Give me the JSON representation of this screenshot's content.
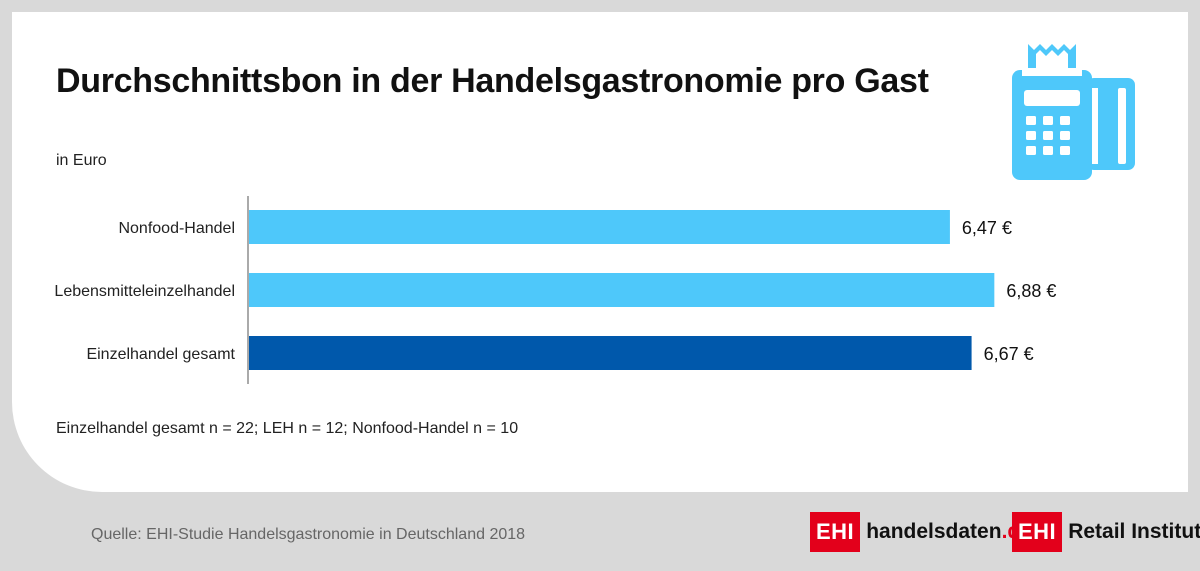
{
  "chart_data": {
    "type": "bar",
    "orientation": "horizontal",
    "title": "Durchschnittsbon in der Handelsgastronomie pro Gast",
    "unit_label": "in Euro",
    "categories": [
      "Nonfood-Handel",
      "Lebensmitteleinzelhandel",
      "Einzelhandel gesamt"
    ],
    "values": [
      6.47,
      6.88,
      6.67
    ],
    "value_labels": [
      "6,47 €",
      "6,88 €",
      "6,67 €"
    ],
    "colors": [
      "#4ec8fa",
      "#4ec8fa",
      "#0058ab"
    ],
    "xlim": [
      0,
      7.2
    ],
    "grid": false,
    "legend": "none"
  },
  "note": "Einzelhandel gesamt n = 22; LEH n = 12; Nonfood-Handel n = 10",
  "source": "Quelle: EHI-Studie Handelsgastronomie in Deutschland 2018",
  "logos": {
    "ehi_mark": "EHI",
    "handelsdaten_main": "handelsdaten",
    "handelsdaten_tld": ".de",
    "retail_institute": "Retail Institute",
    "registered": "®"
  },
  "icon": {
    "name": "payment-terminal-icon",
    "color": "#4ec8fa"
  }
}
